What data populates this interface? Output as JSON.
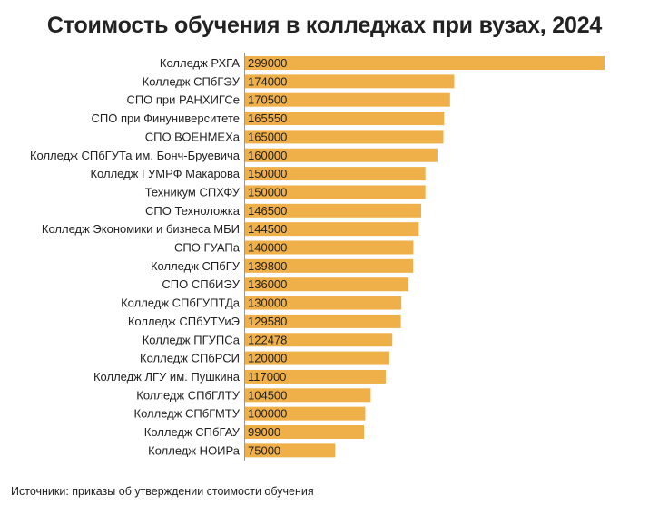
{
  "chart_data": {
    "type": "bar",
    "orientation": "horizontal",
    "title": "Стоимость обучения в колледжах при вузах, 2024",
    "categories": [
      "Колледж РХГА",
      "Колледж СПбГЭУ",
      "СПО при РАНХИГСе",
      "СПО при Финуниверситете",
      "СПО ВОЕНМЕХа",
      "Колледж СПбГУТа им. Бонч-Бруевича",
      "Колледж ГУМРФ Макарова",
      "Техникум СПХФУ",
      "СПО Техноложка",
      "Колледж Экономики и бизнеса МБИ",
      "СПО ГУАПа",
      "Колледж СПбГУ",
      "СПО СПбИЭУ",
      "Колледж СПбГУПТДа",
      "Колледж СПбУТУиЭ",
      "Колледж ПГУПСа",
      "Колледж СПбРСИ",
      "Колледж ЛГУ им. Пушкина",
      "Колледж СПбГЛТУ",
      "Колледж СПбГМТУ",
      "Колледж СПбГАУ",
      "Колледж НОИРа"
    ],
    "values": [
      299000,
      174000,
      170500,
      165550,
      165000,
      160000,
      150000,
      150000,
      146500,
      144500,
      140000,
      139800,
      136000,
      130000,
      129580,
      122478,
      120000,
      117000,
      104500,
      100000,
      99000,
      75000
    ],
    "xlim": [
      0,
      299000
    ],
    "grid": false,
    "bar_color": "#efb04a",
    "axis_color": "#999999"
  },
  "source": "Источники: приказы об утверждении стоимости обучения"
}
